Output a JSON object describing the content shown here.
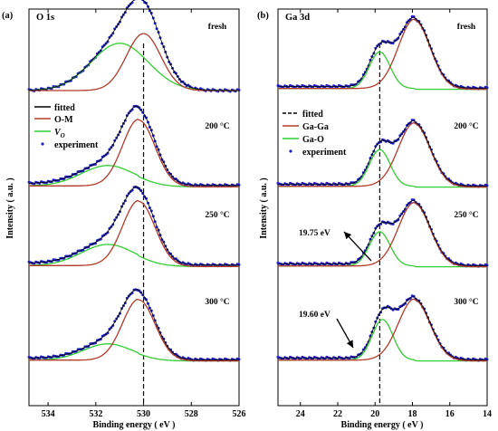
{
  "colors": {
    "fitted": "#000000",
    "component_main": "#b23a2a",
    "component_secondary": "#33cc33",
    "experiment": "#2020c8",
    "dashed": "#000000"
  },
  "chart_data": [
    {
      "type": "line",
      "panel_tag": "(a)",
      "core_level": "O 1s",
      "xlabel": "Binding energy ( eV )",
      "ylabel": "Intensity ( a.u. )",
      "xlim": [
        534.8,
        526
      ],
      "x_reversed": true,
      "xticks": [
        "534",
        "532",
        "530",
        "528",
        "526"
      ],
      "reference_line_x": 530.0,
      "legend": [
        "fitted",
        "O-M",
        "VO",
        "experiment"
      ],
      "legend_vo_main": "V",
      "legend_vo_sub": "O",
      "spectra": [
        {
          "label": "fresh",
          "main_peak": {
            "center": 530.0,
            "height": 0.7,
            "fwhm": 1.7
          },
          "secondary_peak": {
            "center": 531.0,
            "height": 0.58,
            "fwhm": 2.8
          },
          "baseline": 0.0
        },
        {
          "label": "200 °C",
          "main_peak": {
            "center": 530.2,
            "height": 0.82,
            "fwhm": 1.6
          },
          "secondary_peak": {
            "center": 531.5,
            "height": 0.25,
            "fwhm": 2.6
          },
          "baseline": 0.06
        },
        {
          "label": "250 °C",
          "main_peak": {
            "center": 530.2,
            "height": 0.8,
            "fwhm": 1.6
          },
          "secondary_peak": {
            "center": 531.5,
            "height": 0.26,
            "fwhm": 2.6
          },
          "baseline": 0.06
        },
        {
          "label": "300 °C",
          "main_peak": {
            "center": 530.2,
            "height": 0.75,
            "fwhm": 1.6
          },
          "secondary_peak": {
            "center": 531.5,
            "height": 0.2,
            "fwhm": 2.4
          },
          "baseline": 0.05
        }
      ]
    },
    {
      "type": "line",
      "panel_tag": "(b)",
      "core_level": "Ga 3d",
      "xlabel": "Binding energy ( eV )",
      "ylabel": "Intensity ( a.u. )",
      "xlim": [
        25.2,
        14
      ],
      "x_reversed": true,
      "xticks": [
        "24",
        "22",
        "20",
        "18",
        "16",
        "14"
      ],
      "reference_line_x": 19.75,
      "legend": [
        "fitted",
        "Ga-Ga",
        "Ga-O",
        "experiment"
      ],
      "annotations": [
        {
          "text": "19.75 eV",
          "spectrum": "250 °C"
        },
        {
          "text": "19.60 eV",
          "spectrum": "300 °C"
        }
      ],
      "spectra": [
        {
          "label": "fresh",
          "main_peak": {
            "center": 17.9,
            "height": 0.85,
            "fwhm": 2.0
          },
          "secondary_peak": {
            "center": 19.75,
            "height": 0.45,
            "fwhm": 1.3
          },
          "baseline": 0.05
        },
        {
          "label": "200 °C",
          "main_peak": {
            "center": 17.9,
            "height": 0.78,
            "fwhm": 2.0
          },
          "secondary_peak": {
            "center": 19.75,
            "height": 0.45,
            "fwhm": 1.3
          },
          "baseline": 0.05
        },
        {
          "label": "250 °C",
          "main_peak": {
            "center": 17.9,
            "height": 0.78,
            "fwhm": 2.0
          },
          "secondary_peak": {
            "center": 19.75,
            "height": 0.42,
            "fwhm": 1.3
          },
          "baseline": 0.05
        },
        {
          "label": "300 °C",
          "main_peak": {
            "center": 17.9,
            "height": 0.75,
            "fwhm": 2.0
          },
          "secondary_peak": {
            "center": 19.6,
            "height": 0.5,
            "fwhm": 1.3
          },
          "baseline": 0.05
        }
      ]
    }
  ]
}
